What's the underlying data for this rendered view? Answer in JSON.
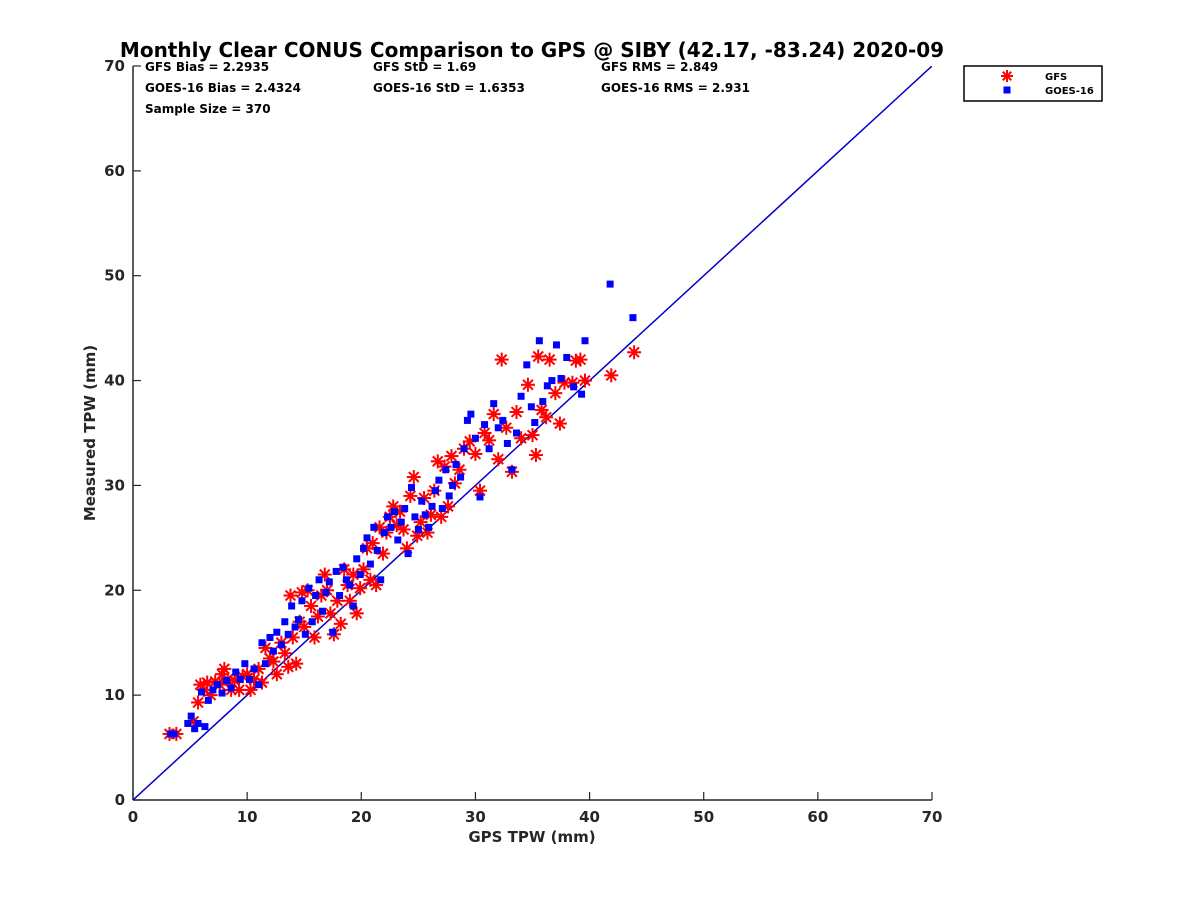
{
  "chart_data": {
    "type": "scatter",
    "title": "Monthly Clear CONUS Comparison to GPS @ SIBY (42.17, -83.24) 2020-09",
    "xlabel": "GPS TPW (mm)",
    "ylabel": "Measured TPW (mm)",
    "xlim": [
      0,
      70
    ],
    "ylim": [
      0,
      70
    ],
    "xticks": [
      0,
      10,
      20,
      30,
      40,
      50,
      60,
      70
    ],
    "yticks": [
      0,
      10,
      20,
      30,
      40,
      50,
      60,
      70
    ],
    "grid": false,
    "legend_position": "top-right",
    "reference_line": {
      "x": [
        0,
        70
      ],
      "y": [
        0,
        70
      ],
      "color": "#0000cc"
    },
    "stats": [
      [
        "GFS Bias = 2.2935",
        "GFS StD = 1.69",
        "GFS RMS = 2.849"
      ],
      [
        "GOES-16 Bias = 2.4324",
        "GOES-16 StD = 1.6353",
        "GOES-16 RMS = 2.931"
      ],
      [
        "Sample Size = 370"
      ]
    ],
    "series": [
      {
        "name": "GFS",
        "marker": "asterisk",
        "color": "#ff0000",
        "points": [
          [
            3.2,
            6.3
          ],
          [
            3.8,
            6.3
          ],
          [
            5.3,
            7.5
          ],
          [
            5.7,
            9.3
          ],
          [
            5.9,
            11.0
          ],
          [
            6.2,
            10.5
          ],
          [
            6.5,
            11.2
          ],
          [
            6.8,
            10.0
          ],
          [
            7.2,
            11.3
          ],
          [
            7.6,
            11.0
          ],
          [
            7.8,
            12.0
          ],
          [
            8.0,
            12.5
          ],
          [
            8.3,
            11.5
          ],
          [
            8.6,
            10.5
          ],
          [
            8.9,
            11.4
          ],
          [
            9.3,
            10.5
          ],
          [
            9.6,
            11.8
          ],
          [
            10.0,
            12.0
          ],
          [
            10.3,
            10.5
          ],
          [
            10.6,
            11.5
          ],
          [
            11.0,
            12.5
          ],
          [
            11.3,
            11.2
          ],
          [
            11.6,
            14.5
          ],
          [
            12.0,
            13.5
          ],
          [
            12.3,
            13.2
          ],
          [
            12.6,
            12.0
          ],
          [
            13.0,
            15.0
          ],
          [
            13.3,
            14.0
          ],
          [
            13.6,
            12.7
          ],
          [
            13.8,
            19.5
          ],
          [
            14.0,
            15.5
          ],
          [
            14.3,
            13.0
          ],
          [
            14.6,
            17.0
          ],
          [
            14.8,
            19.8
          ],
          [
            15.0,
            16.5
          ],
          [
            15.3,
            20.0
          ],
          [
            15.6,
            18.5
          ],
          [
            15.9,
            15.5
          ],
          [
            16.2,
            17.5
          ],
          [
            16.5,
            19.5
          ],
          [
            16.8,
            21.5
          ],
          [
            17.0,
            20.0
          ],
          [
            17.3,
            17.8
          ],
          [
            17.6,
            15.8
          ],
          [
            17.9,
            19.0
          ],
          [
            18.2,
            16.8
          ],
          [
            18.5,
            22.0
          ],
          [
            18.8,
            20.5
          ],
          [
            19.0,
            19.0
          ],
          [
            19.3,
            21.5
          ],
          [
            19.6,
            17.8
          ],
          [
            19.9,
            20.2
          ],
          [
            20.2,
            22.0
          ],
          [
            20.5,
            24.0
          ],
          [
            20.8,
            21.0
          ],
          [
            21.0,
            24.5
          ],
          [
            21.3,
            20.5
          ],
          [
            21.6,
            26.0
          ],
          [
            21.9,
            23.5
          ],
          [
            22.2,
            25.5
          ],
          [
            22.5,
            27.0
          ],
          [
            22.8,
            28.0
          ],
          [
            23.1,
            26.2
          ],
          [
            23.4,
            27.5
          ],
          [
            23.7,
            25.8
          ],
          [
            24.0,
            24.0
          ],
          [
            24.3,
            29.0
          ],
          [
            24.6,
            30.8
          ],
          [
            24.9,
            25.2
          ],
          [
            25.2,
            26.5
          ],
          [
            25.5,
            28.8
          ],
          [
            25.8,
            25.5
          ],
          [
            26.1,
            27.2
          ],
          [
            26.4,
            29.5
          ],
          [
            26.7,
            32.3
          ],
          [
            27.0,
            27.0
          ],
          [
            27.3,
            31.8
          ],
          [
            27.6,
            28.0
          ],
          [
            27.9,
            32.8
          ],
          [
            28.2,
            30.2
          ],
          [
            28.6,
            31.5
          ],
          [
            29.0,
            33.5
          ],
          [
            29.5,
            34.2
          ],
          [
            30.0,
            33.0
          ],
          [
            30.4,
            29.5
          ],
          [
            30.8,
            35.0
          ],
          [
            31.2,
            34.3
          ],
          [
            31.6,
            36.8
          ],
          [
            32.0,
            32.5
          ],
          [
            32.3,
            42.0
          ],
          [
            32.7,
            35.5
          ],
          [
            33.2,
            31.3
          ],
          [
            33.6,
            37.0
          ],
          [
            34.0,
            34.5
          ],
          [
            34.6,
            39.6
          ],
          [
            35.0,
            34.8
          ],
          [
            35.3,
            32.9
          ],
          [
            35.5,
            42.3
          ],
          [
            35.8,
            37.2
          ],
          [
            36.2,
            36.5
          ],
          [
            36.5,
            42.0
          ],
          [
            37.0,
            38.8
          ],
          [
            37.4,
            35.9
          ],
          [
            37.8,
            39.8
          ],
          [
            38.5,
            39.8
          ],
          [
            38.8,
            41.9
          ],
          [
            39.2,
            42.0
          ],
          [
            39.6,
            40.0
          ],
          [
            41.9,
            40.5
          ],
          [
            43.9,
            42.7
          ]
        ]
      },
      {
        "name": "GOES-16",
        "marker": "square",
        "color": "#0000ff",
        "points": [
          [
            3.3,
            6.3
          ],
          [
            3.6,
            6.3
          ],
          [
            4.8,
            7.3
          ],
          [
            5.1,
            8.0
          ],
          [
            5.4,
            6.8
          ],
          [
            5.7,
            7.3
          ],
          [
            6.0,
            10.3
          ],
          [
            6.3,
            7.0
          ],
          [
            6.6,
            9.5
          ],
          [
            7.0,
            10.5
          ],
          [
            7.4,
            11.0
          ],
          [
            7.8,
            10.2
          ],
          [
            8.2,
            11.4
          ],
          [
            8.6,
            10.7
          ],
          [
            9.0,
            12.2
          ],
          [
            9.4,
            11.5
          ],
          [
            9.8,
            13.0
          ],
          [
            10.2,
            11.5
          ],
          [
            10.6,
            12.5
          ],
          [
            11.0,
            11.0
          ],
          [
            11.3,
            15.0
          ],
          [
            11.6,
            13.0
          ],
          [
            12.0,
            15.5
          ],
          [
            12.3,
            14.2
          ],
          [
            12.6,
            16.0
          ],
          [
            13.0,
            14.8
          ],
          [
            13.3,
            17.0
          ],
          [
            13.6,
            15.8
          ],
          [
            13.9,
            18.5
          ],
          [
            14.2,
            16.5
          ],
          [
            14.5,
            17.2
          ],
          [
            14.8,
            19.0
          ],
          [
            15.1,
            15.8
          ],
          [
            15.4,
            20.2
          ],
          [
            15.7,
            17.0
          ],
          [
            16.0,
            19.5
          ],
          [
            16.3,
            21.0
          ],
          [
            16.6,
            18.0
          ],
          [
            16.9,
            19.8
          ],
          [
            17.2,
            20.8
          ],
          [
            17.5,
            16.0
          ],
          [
            17.8,
            21.8
          ],
          [
            18.1,
            19.5
          ],
          [
            18.4,
            22.2
          ],
          [
            18.7,
            21.0
          ],
          [
            19.0,
            20.5
          ],
          [
            19.3,
            18.5
          ],
          [
            19.6,
            23.0
          ],
          [
            19.9,
            21.5
          ],
          [
            20.2,
            24.0
          ],
          [
            20.5,
            25.0
          ],
          [
            20.8,
            22.5
          ],
          [
            21.1,
            26.0
          ],
          [
            21.4,
            23.8
          ],
          [
            21.7,
            21.0
          ],
          [
            22.0,
            25.5
          ],
          [
            22.3,
            27.0
          ],
          [
            22.6,
            26.0
          ],
          [
            22.9,
            27.5
          ],
          [
            23.2,
            24.8
          ],
          [
            23.5,
            26.5
          ],
          [
            23.8,
            27.8
          ],
          [
            24.1,
            23.5
          ],
          [
            24.4,
            29.8
          ],
          [
            24.7,
            27.0
          ],
          [
            25.0,
            25.8
          ],
          [
            25.3,
            28.5
          ],
          [
            25.6,
            27.2
          ],
          [
            25.9,
            26.0
          ],
          [
            26.2,
            28.0
          ],
          [
            26.5,
            29.5
          ],
          [
            26.8,
            30.5
          ],
          [
            27.1,
            27.8
          ],
          [
            27.4,
            31.5
          ],
          [
            27.7,
            29.0
          ],
          [
            28.0,
            30.0
          ],
          [
            28.3,
            32.0
          ],
          [
            28.7,
            30.8
          ],
          [
            29.0,
            33.5
          ],
          [
            29.3,
            36.2
          ],
          [
            29.6,
            36.8
          ],
          [
            30.0,
            34.5
          ],
          [
            30.4,
            28.9
          ],
          [
            30.8,
            35.8
          ],
          [
            31.2,
            33.5
          ],
          [
            31.6,
            37.8
          ],
          [
            32.0,
            35.5
          ],
          [
            32.4,
            36.2
          ],
          [
            32.8,
            34.0
          ],
          [
            33.2,
            31.5
          ],
          [
            33.6,
            35.0
          ],
          [
            34.0,
            38.5
          ],
          [
            34.5,
            41.5
          ],
          [
            34.9,
            37.5
          ],
          [
            35.2,
            36.0
          ],
          [
            35.6,
            43.8
          ],
          [
            35.9,
            38.0
          ],
          [
            36.3,
            39.5
          ],
          [
            36.7,
            40.0
          ],
          [
            37.1,
            43.4
          ],
          [
            37.5,
            40.2
          ],
          [
            38.0,
            42.2
          ],
          [
            38.6,
            39.4
          ],
          [
            39.3,
            38.7
          ],
          [
            39.6,
            43.8
          ],
          [
            41.8,
            49.2
          ],
          [
            43.8,
            46.0
          ]
        ]
      }
    ]
  }
}
